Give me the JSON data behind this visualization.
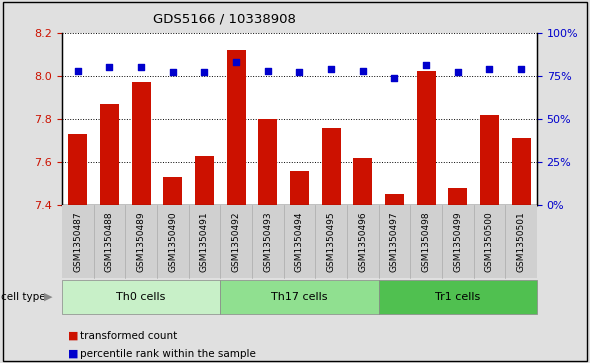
{
  "title": "GDS5166 / 10338908",
  "samples": [
    "GSM1350487",
    "GSM1350488",
    "GSM1350489",
    "GSM1350490",
    "GSM1350491",
    "GSM1350492",
    "GSM1350493",
    "GSM1350494",
    "GSM1350495",
    "GSM1350496",
    "GSM1350497",
    "GSM1350498",
    "GSM1350499",
    "GSM1350500",
    "GSM1350501"
  ],
  "transformed_count": [
    7.73,
    7.87,
    7.97,
    7.53,
    7.63,
    8.12,
    7.8,
    7.56,
    7.76,
    7.62,
    7.45,
    8.02,
    7.48,
    7.82,
    7.71
  ],
  "percentile_rank": [
    78,
    80,
    80,
    77,
    77,
    83,
    78,
    77,
    79,
    78,
    74,
    81,
    77,
    79,
    79
  ],
  "cell_groups": [
    {
      "label": "Th0 cells",
      "start": 0,
      "end": 5,
      "color": "#c8f0c8"
    },
    {
      "label": "Th17 cells",
      "start": 5,
      "end": 10,
      "color": "#90e090"
    },
    {
      "label": "Tr1 cells",
      "start": 10,
      "end": 15,
      "color": "#50c050"
    }
  ],
  "ylim_left": [
    7.4,
    8.2
  ],
  "ylim_right": [
    0,
    100
  ],
  "yticks_left": [
    7.4,
    7.6,
    7.8,
    8.0,
    8.2
  ],
  "yticks_right": [
    0,
    25,
    50,
    75,
    100
  ],
  "bar_color": "#cc1100",
  "dot_color": "#0000cc",
  "background_color": "#e0e0e0",
  "plot_bg_color": "#ffffff",
  "ticklabel_bg_color": "#d0d0d0"
}
